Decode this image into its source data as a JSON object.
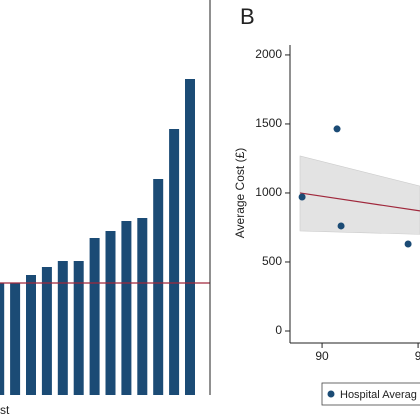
{
  "chart_data": [
    {
      "type": "bar",
      "values": [
        112,
        112,
        120,
        128,
        134,
        134,
        157,
        164,
        174,
        177,
        216,
        266,
        316
      ],
      "color": "#1b4b75",
      "reference_line": 112,
      "reference_color": "#a0283c",
      "ylim": [
        0,
        395
      ],
      "xlabel": "st"
    },
    {
      "type": "scatter",
      "panel_label": "B",
      "ylabel": "Average Cost (£)",
      "xlim": [
        88.33,
        95.1
      ],
      "ylim": [
        -87,
        2072
      ],
      "xticks": [
        90,
        {
          "value": 95,
          "label": "9"
        }
      ],
      "yticks": [
        0,
        500,
        1000,
        1500,
        2000
      ],
      "series": [
        {
          "name": "Hospital Averag",
          "color": "#1b4b75",
          "x": [
            88.96,
            90.78,
            90.99,
            94.48
          ],
          "y": [
            971,
            1464,
            761,
            630
          ]
        }
      ],
      "fit": {
        "color": "#a0283c",
        "band_color": "#e3e3e3",
        "x": [
          88.85,
          95.1
        ],
        "y": [
          1000,
          870
        ],
        "lower": [
          725,
          700
        ],
        "upper": [
          1268,
          1050
        ]
      }
    }
  ]
}
